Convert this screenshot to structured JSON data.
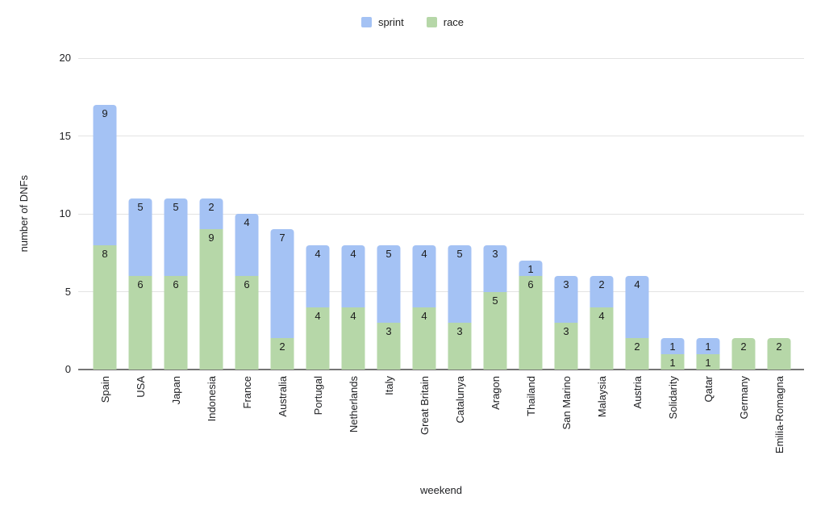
{
  "chart_data": {
    "type": "bar",
    "stacked": true,
    "title": "",
    "xlabel": "weekend",
    "ylabel": "number of DNFs",
    "ylim": [
      0,
      20
    ],
    "yticks": [
      0,
      5,
      10,
      15,
      20
    ],
    "grid": true,
    "legend_position": "top",
    "categories": [
      "Spain",
      "USA",
      "Japan",
      "Indonesia",
      "France",
      "Australia",
      "Portugal",
      "Netherlands",
      "Italy",
      "Great Britain",
      "Catalunya",
      "Aragon",
      "Thailand",
      "San Marino",
      "Malaysia",
      "Austria",
      "Solidarity",
      "Qatar",
      "Germany",
      "Emilia-Romagna"
    ],
    "series": [
      {
        "name": "sprint",
        "color": "#a4c2f4",
        "values": [
          9,
          5,
          5,
          2,
          4,
          7,
          4,
          4,
          5,
          4,
          5,
          3,
          1,
          3,
          2,
          4,
          1,
          1,
          0,
          0
        ]
      },
      {
        "name": "race",
        "color": "#b6d7a8",
        "values": [
          8,
          6,
          6,
          9,
          6,
          2,
          4,
          4,
          3,
          4,
          3,
          5,
          6,
          3,
          4,
          2,
          1,
          1,
          2,
          2
        ]
      }
    ],
    "totals": [
      17,
      11,
      11,
      11,
      10,
      9,
      8,
      8,
      8,
      8,
      8,
      8,
      7,
      6,
      6,
      6,
      2,
      2,
      2,
      2
    ]
  },
  "styles": {
    "background": "#ffffff",
    "gridline_color": "#e3e3e3",
    "baseline_color": "#757575",
    "text_color": "#202124",
    "bar_label_color": "#1b1b1b",
    "sprint_color": "#a4c2f4",
    "race_color": "#b6d7a8"
  }
}
